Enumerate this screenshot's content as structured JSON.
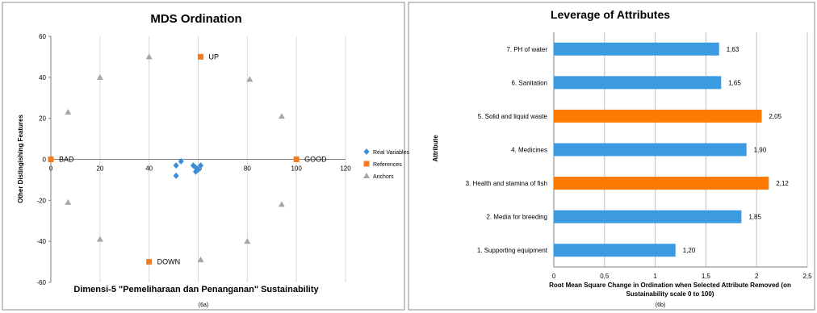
{
  "chart_data": [
    {
      "type": "scatter",
      "title": "MDS Ordination",
      "xlabel": "Dimensi-5 \"Pemeliharaan dan Penanganan\" Sustainability",
      "ylabel": "Other Distingishing Features",
      "caption": "(6a)",
      "xlim": [
        0,
        120
      ],
      "ylim": [
        -60,
        60
      ],
      "xticks": [
        "0",
        "20",
        "40",
        "60",
        "80",
        "100",
        "120"
      ],
      "yticks": [
        "-60",
        "-40",
        "-20",
        "0",
        "20",
        "40",
        "60"
      ],
      "grid": "vertical",
      "legend": "right",
      "series": [
        {
          "name": "Real Variables",
          "color": "#3c8dd8",
          "marker": "diamond",
          "points": [
            [
              51,
              -3
            ],
            [
              53,
              -1
            ],
            [
              51,
              -8
            ],
            [
              58,
              -3
            ],
            [
              59,
              -4
            ],
            [
              60,
              -5
            ],
            [
              61,
              -3
            ],
            [
              59,
              -6
            ]
          ]
        },
        {
          "name": "References",
          "color": "#f47b20",
          "marker": "square",
          "points": [
            [
              0,
              0
            ],
            [
              100,
              0
            ],
            [
              61,
              50
            ],
            [
              40,
              -50
            ]
          ]
        },
        {
          "name": "Anchors",
          "color": "#a6a6a6",
          "marker": "triangle",
          "points": [
            [
              7,
              23
            ],
            [
              20,
              40
            ],
            [
              40,
              50
            ],
            [
              81,
              39
            ],
            [
              94,
              21
            ],
            [
              7,
              -21
            ],
            [
              20,
              -39
            ],
            [
              61,
              -49
            ],
            [
              80,
              -40
            ],
            [
              94,
              -22
            ]
          ]
        }
      ],
      "annotations": [
        {
          "text": "BAD",
          "x": 0,
          "y": 0
        },
        {
          "text": "GOOD",
          "x": 100,
          "y": 0
        },
        {
          "text": "UP",
          "x": 61,
          "y": 50
        },
        {
          "text": "DOWN",
          "x": 40,
          "y": -50
        }
      ]
    },
    {
      "type": "bar",
      "orientation": "horizontal",
      "title": "Leverage of Attributes",
      "xlabel": "Root Mean Square Change in Ordination when Selected Attribute Removed (on",
      "xlabel2": "Sustainability scale 0 to 100)",
      "ylabel": "Attribute",
      "caption": "(6b)",
      "xlim": [
        0,
        2.5
      ],
      "xticks": [
        "0",
        "0,5",
        "1",
        "1,5",
        "2",
        "2,5"
      ],
      "grid": "vertical",
      "categories": [
        "7. PH of water",
        "6. Sanitation",
        "5. Solid and liquid waste",
        "4. Medicines",
        "3. Health and stamina of fish",
        "2. Media for breeding",
        "1. Supporting equipment"
      ],
      "values": [
        1.63,
        1.65,
        2.05,
        1.9,
        2.12,
        1.85,
        1.2
      ],
      "value_labels": [
        "1,63",
        "1,65",
        "2,05",
        "1,90",
        "2,12",
        "1,85",
        "1,20"
      ],
      "colors": [
        "#3c9ae0",
        "#3c9ae0",
        "#ff7a00",
        "#3c9ae0",
        "#ff7a00",
        "#3c9ae0",
        "#3c9ae0"
      ]
    }
  ]
}
